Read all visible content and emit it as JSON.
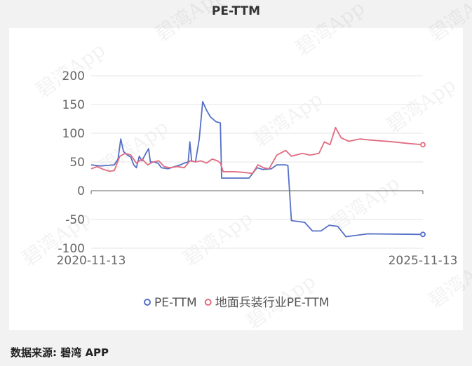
{
  "title": "PE-TTM",
  "footer": "数据来源: 碧湾 APP",
  "watermark": "碧湾App",
  "colors": {
    "series1": "#5470c6",
    "series2": "#e06c7f",
    "grid": "#e6e6e6",
    "axis": "#666666"
  },
  "chart_data": {
    "type": "line",
    "title": "PE-TTM",
    "x_range": [
      "2020-11-13",
      "2025-11-13"
    ],
    "x_tick_labels": [
      "2020-11-13",
      "2025-11-13"
    ],
    "y_ticks": [
      200,
      150,
      100,
      50,
      0,
      -50,
      -100
    ],
    "ylim": [
      -100,
      200
    ],
    "grid": "horizontal",
    "legend_position": "bottom-center",
    "series": [
      {
        "name": "PE-TTM",
        "color": "#5470c6",
        "points": [
          [
            "2020-11-13",
            45
          ],
          [
            "2021-01-01",
            43
          ],
          [
            "2021-02-15",
            44
          ],
          [
            "2021-03-20",
            45
          ],
          [
            "2021-04-10",
            55
          ],
          [
            "2021-04-25",
            90
          ],
          [
            "2021-05-10",
            68
          ],
          [
            "2021-06-01",
            62
          ],
          [
            "2021-06-20",
            58
          ],
          [
            "2021-07-05",
            45
          ],
          [
            "2021-07-20",
            40
          ],
          [
            "2021-08-05",
            60
          ],
          [
            "2021-08-20",
            52
          ],
          [
            "2021-09-10",
            65
          ],
          [
            "2021-09-25",
            73
          ],
          [
            "2021-10-05",
            50
          ],
          [
            "2021-10-25",
            50
          ],
          [
            "2021-11-15",
            48
          ],
          [
            "2021-12-05",
            40
          ],
          [
            "2022-01-10",
            38
          ],
          [
            "2022-02-15",
            42
          ],
          [
            "2022-03-20",
            45
          ],
          [
            "2022-04-10",
            48
          ],
          [
            "2022-05-01",
            50
          ],
          [
            "2022-05-10",
            85
          ],
          [
            "2022-05-20",
            52
          ],
          [
            "2022-06-10",
            50
          ],
          [
            "2022-07-01",
            90
          ],
          [
            "2022-07-20",
            155
          ],
          [
            "2022-08-10",
            140
          ],
          [
            "2022-09-01",
            128
          ],
          [
            "2022-10-01",
            120
          ],
          [
            "2022-10-25",
            118
          ],
          [
            "2022-11-01",
            22
          ],
          [
            "2023-01-15",
            22
          ],
          [
            "2023-04-01",
            22
          ],
          [
            "2023-05-15",
            40
          ],
          [
            "2023-06-15",
            37
          ],
          [
            "2023-08-01",
            38
          ],
          [
            "2023-09-01",
            45
          ],
          [
            "2023-10-15",
            45
          ],
          [
            "2023-11-01",
            44
          ],
          [
            "2023-11-20",
            -52
          ],
          [
            "2024-02-01",
            -55
          ],
          [
            "2024-03-15",
            -70
          ],
          [
            "2024-05-01",
            -70
          ],
          [
            "2024-06-15",
            -60
          ],
          [
            "2024-08-01",
            -62
          ],
          [
            "2024-09-15",
            -80
          ],
          [
            "2024-11-01",
            -78
          ],
          [
            "2025-01-15",
            -75
          ],
          [
            "2025-11-13",
            -76
          ]
        ]
      },
      {
        "name": "地面兵装行业PE-TTM",
        "color": "#e06c7f",
        "points": [
          [
            "2020-11-13",
            38
          ],
          [
            "2020-12-15",
            42
          ],
          [
            "2021-01-20",
            37
          ],
          [
            "2021-02-20",
            34
          ],
          [
            "2021-03-20",
            35
          ],
          [
            "2021-04-20",
            60
          ],
          [
            "2021-05-20",
            65
          ],
          [
            "2021-06-20",
            62
          ],
          [
            "2021-07-20",
            48
          ],
          [
            "2021-08-20",
            55
          ],
          [
            "2021-09-20",
            45
          ],
          [
            "2021-10-20",
            50
          ],
          [
            "2021-11-20",
            52
          ],
          [
            "2021-12-20",
            42
          ],
          [
            "2022-01-20",
            40
          ],
          [
            "2022-03-01",
            42
          ],
          [
            "2022-04-10",
            40
          ],
          [
            "2022-05-10",
            52
          ],
          [
            "2022-06-10",
            50
          ],
          [
            "2022-07-10",
            52
          ],
          [
            "2022-08-10",
            48
          ],
          [
            "2022-09-10",
            55
          ],
          [
            "2022-10-10",
            52
          ],
          [
            "2022-10-25",
            48
          ],
          [
            "2022-11-10",
            33
          ],
          [
            "2023-01-10",
            33
          ],
          [
            "2023-03-01",
            32
          ],
          [
            "2023-04-20",
            30
          ],
          [
            "2023-05-20",
            45
          ],
          [
            "2023-06-20",
            40
          ],
          [
            "2023-07-20",
            38
          ],
          [
            "2023-09-01",
            62
          ],
          [
            "2023-10-20",
            70
          ],
          [
            "2023-11-20",
            60
          ],
          [
            "2024-01-20",
            65
          ],
          [
            "2024-03-01",
            62
          ],
          [
            "2024-04-20",
            65
          ],
          [
            "2024-05-20",
            85
          ],
          [
            "2024-06-20",
            80
          ],
          [
            "2024-07-20",
            110
          ],
          [
            "2024-08-20",
            92
          ],
          [
            "2024-10-01",
            86
          ],
          [
            "2024-12-01",
            90
          ],
          [
            "2025-02-01",
            88
          ],
          [
            "2025-06-01",
            85
          ],
          [
            "2025-09-01",
            82
          ],
          [
            "2025-11-13",
            80
          ]
        ]
      }
    ]
  }
}
